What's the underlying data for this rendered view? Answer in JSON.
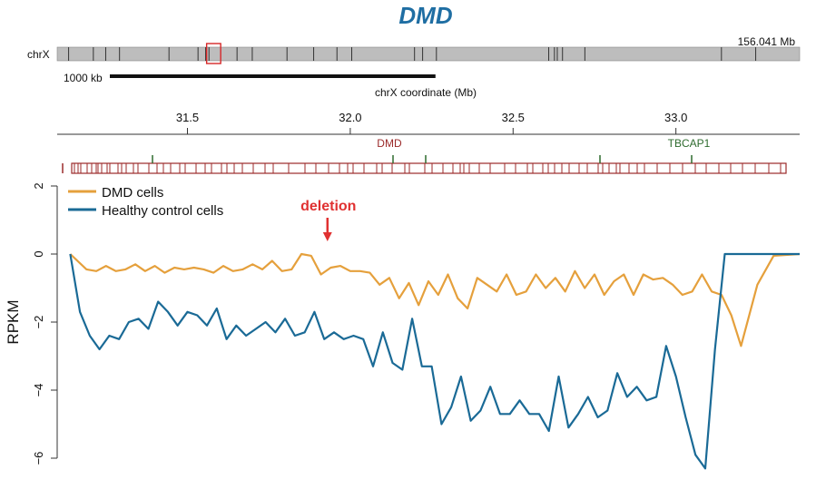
{
  "colors": {
    "title": "#1f6ea3",
    "ideogram": "#bdbdbd",
    "ideogram_highlight": "#d62728",
    "gene_track": "#9b2a2a",
    "gene_label_dmd": "#9b2a2a",
    "gene_label_tbcap1": "#2e6b2e",
    "dmd_series": "#e5a03c",
    "healthy_series": "#1a6a96",
    "deletion": "#e03131"
  },
  "header": {
    "title": "DMD",
    "chrom": "chrX",
    "chrom_length": "156.041 Mb",
    "scale_bar_label": "1000 kb",
    "coord_axis_label": "chrX coordinate (Mb)"
  },
  "ideogram_bands_mb": [
    2.4,
    7.6,
    10.2,
    13.1,
    23.5,
    29.6,
    31.2,
    31.9,
    37.8,
    41.0,
    48.3,
    53.9,
    58.8,
    61.9,
    75.1,
    76.8,
    79.7,
    103.3,
    104.5,
    105.1,
    106.2,
    110.9,
    139.6,
    146.8
  ],
  "ideogram_highlight_mb": [
    29.5,
    33.6
  ],
  "scale_bar_kb": 1000,
  "genes": [
    {
      "name": "DMD",
      "position_mb": 32.12
    },
    {
      "name": "TBCAP1",
      "position_mb": 33.04
    }
  ],
  "chart_data": {
    "type": "line",
    "title": "",
    "xlabel": "chrX coordinate (Mb)",
    "ylabel": "RPKM",
    "x_ticks": [
      31.5,
      32.0,
      32.5,
      33.0
    ],
    "x_tick_labels": [
      "31.5",
      "32.0",
      "32.5",
      "33.0"
    ],
    "xlim": [
      31.1,
      33.38
    ],
    "y_ticks": [
      2,
      0,
      -2,
      -4,
      -6
    ],
    "y_tick_labels": [
      "2",
      "0",
      "−2",
      "−4",
      "−6"
    ],
    "ylim": [
      -6.5,
      2.2
    ],
    "legend": [
      "DMD cells",
      "Healthy control cells"
    ],
    "legend_position": "top-left",
    "annotation": {
      "label": "deletion",
      "x_mb": 31.93,
      "y": 0
    },
    "series": [
      {
        "name": "DMD cells",
        "x": [
          31.14,
          31.19,
          31.22,
          31.25,
          31.28,
          31.31,
          31.34,
          31.37,
          31.4,
          31.43,
          31.46,
          31.49,
          31.52,
          31.55,
          31.58,
          31.61,
          31.64,
          31.67,
          31.7,
          31.73,
          31.76,
          31.79,
          31.82,
          31.85,
          31.88,
          31.91,
          31.94,
          31.97,
          32.0,
          32.03,
          32.06,
          32.09,
          32.12,
          32.15,
          32.18,
          32.21,
          32.24,
          32.27,
          32.3,
          32.33,
          32.36,
          32.39,
          32.42,
          32.45,
          32.48,
          32.51,
          32.54,
          32.57,
          32.6,
          32.63,
          32.66,
          32.69,
          32.72,
          32.75,
          32.78,
          32.81,
          32.84,
          32.87,
          32.9,
          32.93,
          32.96,
          32.99,
          33.02,
          33.05,
          33.08,
          33.11,
          33.14,
          33.17,
          33.2,
          33.25,
          33.3,
          33.38
        ],
        "values": [
          0.0,
          -0.45,
          -0.5,
          -0.35,
          -0.5,
          -0.45,
          -0.3,
          -0.5,
          -0.35,
          -0.55,
          -0.4,
          -0.45,
          -0.4,
          -0.45,
          -0.55,
          -0.35,
          -0.5,
          -0.45,
          -0.3,
          -0.45,
          -0.2,
          -0.5,
          -0.45,
          0.0,
          -0.05,
          -0.6,
          -0.4,
          -0.35,
          -0.5,
          -0.5,
          -0.55,
          -0.9,
          -0.7,
          -1.3,
          -0.85,
          -1.5,
          -0.8,
          -1.2,
          -0.6,
          -1.3,
          -1.6,
          -0.7,
          -0.9,
          -1.1,
          -0.6,
          -1.2,
          -1.1,
          -0.6,
          -1.0,
          -0.7,
          -1.1,
          -0.5,
          -1.0,
          -0.6,
          -1.2,
          -0.8,
          -0.6,
          -1.2,
          -0.6,
          -0.75,
          -0.7,
          -0.9,
          -1.2,
          -1.1,
          -0.6,
          -1.1,
          -1.2,
          -1.8,
          -2.7,
          -0.9,
          -0.05,
          0.0
        ]
      },
      {
        "name": "Healthy control cells",
        "x": [
          31.14,
          31.17,
          31.2,
          31.23,
          31.26,
          31.29,
          31.32,
          31.35,
          31.38,
          31.41,
          31.44,
          31.47,
          31.5,
          31.53,
          31.56,
          31.59,
          31.62,
          31.65,
          31.68,
          31.71,
          31.74,
          31.77,
          31.8,
          31.83,
          31.86,
          31.89,
          31.92,
          31.95,
          31.98,
          32.01,
          32.04,
          32.07,
          32.1,
          32.13,
          32.16,
          32.19,
          32.22,
          32.25,
          32.28,
          32.31,
          32.34,
          32.37,
          32.4,
          32.43,
          32.46,
          32.49,
          32.52,
          32.55,
          32.58,
          32.61,
          32.64,
          32.67,
          32.7,
          32.73,
          32.76,
          32.79,
          32.82,
          32.85,
          32.88,
          32.91,
          32.94,
          32.97,
          33.0,
          33.03,
          33.06,
          33.09,
          33.12,
          33.15,
          33.18,
          33.21,
          33.24,
          33.27,
          33.3,
          33.38
        ],
        "values": [
          0.0,
          -1.7,
          -2.4,
          -2.8,
          -2.4,
          -2.5,
          -2.0,
          -1.9,
          -2.2,
          -1.4,
          -1.7,
          -2.1,
          -1.7,
          -1.8,
          -2.1,
          -1.6,
          -2.5,
          -2.1,
          -2.4,
          -2.2,
          -2.0,
          -2.3,
          -1.9,
          -2.4,
          -2.3,
          -1.7,
          -2.5,
          -2.3,
          -2.5,
          -2.4,
          -2.5,
          -3.3,
          -2.3,
          -3.2,
          -3.4,
          -1.9,
          -3.3,
          -3.3,
          -5.0,
          -4.5,
          -3.6,
          -4.9,
          -4.6,
          -3.9,
          -4.7,
          -4.7,
          -4.3,
          -4.7,
          -4.7,
          -5.2,
          -3.6,
          -5.1,
          -4.7,
          -4.2,
          -4.8,
          -4.6,
          -3.5,
          -4.2,
          -3.9,
          -4.3,
          -4.2,
          -2.7,
          -3.6,
          -4.8,
          -5.9,
          -6.3,
          -2.8,
          0.0,
          0.0,
          0.0,
          0.0,
          0.0,
          0.0,
          0.0
        ]
      }
    ]
  }
}
